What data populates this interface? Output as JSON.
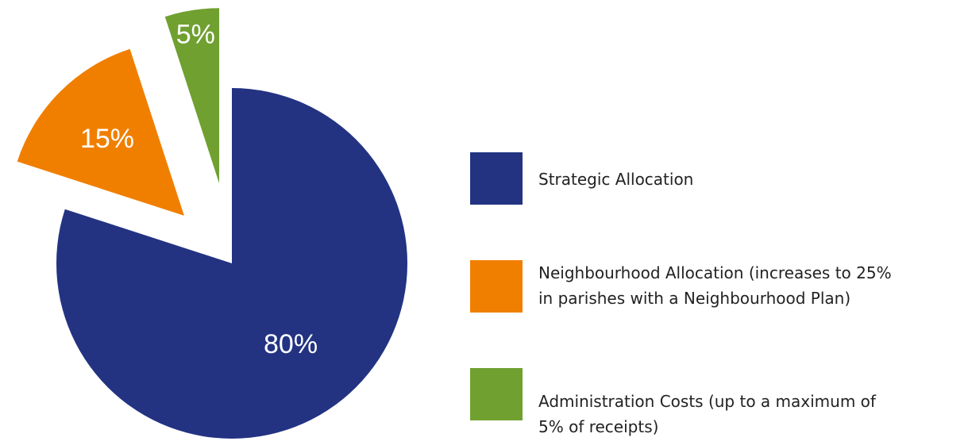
{
  "chart_data": {
    "type": "pie",
    "style": "exploded",
    "slices": [
      {
        "label": "Strategic Allocation",
        "value": 80,
        "value_label": "80%",
        "color": "#233382"
      },
      {
        "label": "Neighbourhood Allocation (increases to 25% in parishes with a Neighbourhood Plan)",
        "value": 15,
        "value_label": "15%",
        "color": "#f07f00"
      },
      {
        "label": "Administration Costs (up to a maximum of 5% of receipts)",
        "value": 5,
        "value_label": "5%",
        "color": "#70a030"
      }
    ],
    "legend": {
      "placement": "right",
      "items": [
        {
          "line1": "Strategic Allocation",
          "line2": "",
          "color": "#233382"
        },
        {
          "line1": "Neighbourhood Allocation (increases to 25%",
          "line2": "in parishes with a Neighbourhood Plan)",
          "color": "#f07f00"
        },
        {
          "line1": "Administration Costs (up to a maximum of",
          "line2": "5% of receipts)",
          "color": "#70a030"
        }
      ]
    }
  }
}
